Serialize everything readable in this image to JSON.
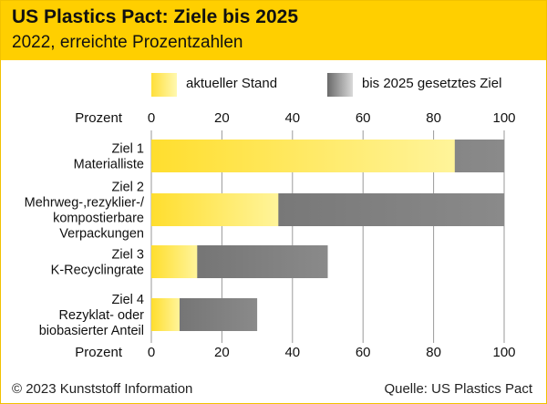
{
  "header": {
    "title": "US Plastics Pact: Ziele bis 2025",
    "subtitle": "2022, erreichte Prozentzahlen"
  },
  "legend": [
    {
      "label": "aktueller Stand",
      "swatch": "gradient-yellow"
    },
    {
      "label": "bis 2025 gesetztes Ziel",
      "swatch": "gradient-gray"
    }
  ],
  "colors": {
    "header_bg": "#ffcf00",
    "current": "#ffd800",
    "target": "#7a7a7a"
  },
  "chart_data": {
    "type": "bar",
    "orientation": "horizontal",
    "stacked": false,
    "axis_label": "Prozent",
    "xlim": [
      0,
      100
    ],
    "ticks": [
      "0",
      "20",
      "40",
      "60",
      "80",
      "100"
    ],
    "tick_values": [
      0,
      20,
      40,
      60,
      80,
      100
    ],
    "grid": true,
    "categories": [
      [
        "Ziel 1",
        "Materialliste"
      ],
      [
        "Ziel 2",
        "Mehrweg-,rezyklier-/",
        "kompostierbare",
        "Verpackungen"
      ],
      [
        "Ziel 3",
        "K-Recyclingrate"
      ],
      [
        "Ziel 4",
        "Rezyklat- oder",
        "biobasierter Anteil"
      ]
    ],
    "series": [
      {
        "name": "bis 2025 gesetztes Ziel",
        "values": [
          100,
          100,
          50,
          30
        ]
      },
      {
        "name": "aktueller Stand",
        "values": [
          86,
          36,
          13,
          8
        ]
      }
    ]
  },
  "footer": {
    "copyright": "© 2023 Kunststoff Information",
    "source": "Quelle: US Plastics Pact"
  }
}
